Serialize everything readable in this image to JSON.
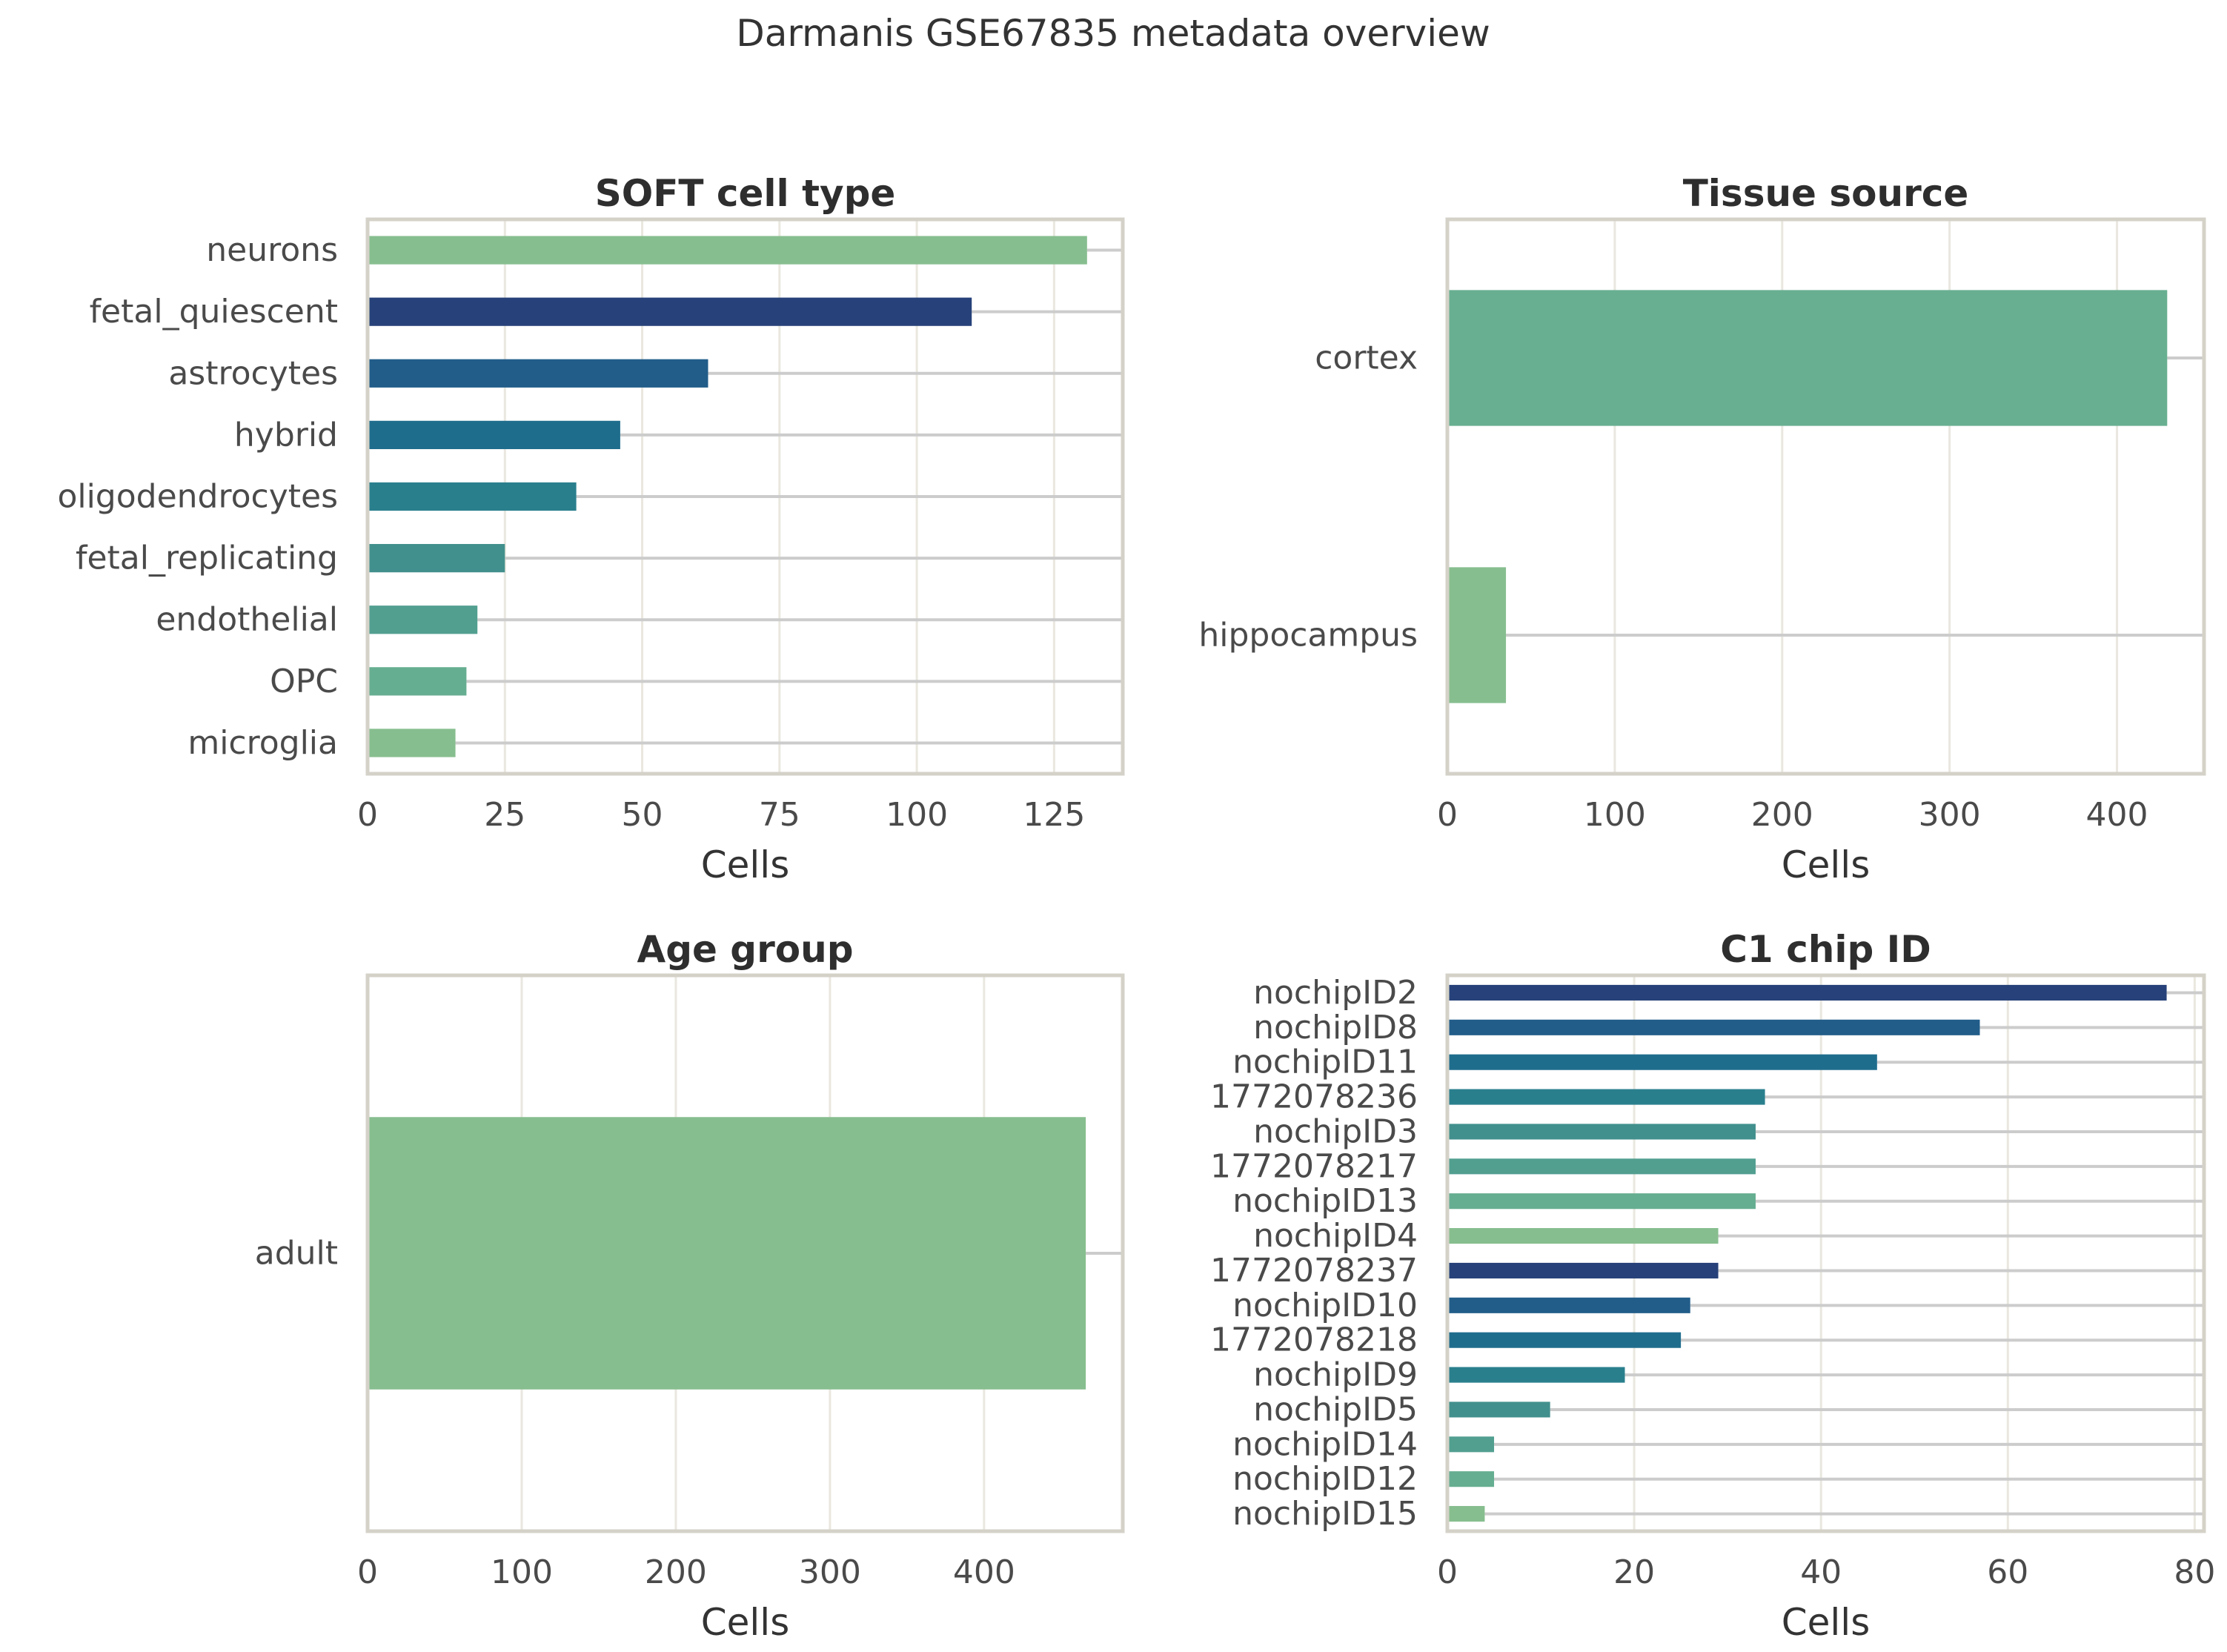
{
  "suptitle": "Darmanis GSE67835 metadata overview",
  "chart_data": [
    {
      "type": "bar",
      "orientation": "horizontal",
      "title": "SOFT cell type",
      "xlabel": "Cells",
      "ylabel": "",
      "categories": [
        "neurons",
        "fetal_quiescent",
        "astrocytes",
        "hybrid",
        "oligodendrocytes",
        "fetal_replicating",
        "endothelial",
        "OPC",
        "microglia"
      ],
      "values": [
        131,
        110,
        62,
        46,
        38,
        25,
        20,
        18,
        16
      ],
      "xlim": [
        0,
        137.5
      ],
      "xticks": [
        0,
        25,
        50,
        75,
        100,
        125
      ],
      "colors": [
        "#87be8f",
        "#27427a",
        "#225d8a",
        "#1f6d8d",
        "#2a7f8d",
        "#42908d",
        "#529f90",
        "#66ae91",
        "#87be8f"
      ],
      "grid": true
    },
    {
      "type": "bar",
      "orientation": "horizontal",
      "title": "Tissue source",
      "xlabel": "Cells",
      "ylabel": "",
      "categories": [
        "cortex",
        "hippocampus"
      ],
      "values": [
        430,
        35
      ],
      "xlim": [
        0,
        452
      ],
      "xticks": [
        0,
        100,
        200,
        300,
        400
      ],
      "colors": [
        "#68af91",
        "#87be8f"
      ],
      "grid": true
    },
    {
      "type": "bar",
      "orientation": "horizontal",
      "title": "Age group",
      "xlabel": "Cells",
      "ylabel": "",
      "categories": [
        "adult"
      ],
      "values": [
        466
      ],
      "xlim": [
        0,
        490
      ],
      "xticks": [
        0,
        100,
        200,
        300,
        400
      ],
      "colors": [
        "#87be8f"
      ],
      "grid": true
    },
    {
      "type": "bar",
      "orientation": "horizontal",
      "title": "C1 chip ID",
      "xlabel": "Cells",
      "ylabel": "",
      "categories": [
        "nochipID2",
        "nochipID8",
        "nochipID11",
        "1772078236",
        "nochipID3",
        "1772078217",
        "nochipID13",
        "nochipID4",
        "1772078237",
        "nochipID10",
        "1772078218",
        "nochipID9",
        "nochipID5",
        "nochipID14",
        "nochipID12",
        "nochipID15"
      ],
      "values": [
        77,
        57,
        46,
        34,
        33,
        33,
        33,
        29,
        29,
        26,
        25,
        19,
        11,
        5,
        5,
        4
      ],
      "xlim": [
        0,
        81
      ],
      "xticks": [
        0,
        20,
        40,
        60,
        80
      ],
      "colors": [
        "#27427a",
        "#225d8a",
        "#1f6d8d",
        "#2a7f8d",
        "#42908d",
        "#529f90",
        "#66ae91",
        "#87be8f",
        "#27427a",
        "#225d8a",
        "#1f6d8d",
        "#2a7f8d",
        "#42908d",
        "#529f90",
        "#66ae91",
        "#87be8f"
      ],
      "grid": true
    }
  ],
  "style": {
    "grid_color": "#e9e7df",
    "spine_color": "#d4d2c8",
    "stem_color": "#cccccc"
  }
}
